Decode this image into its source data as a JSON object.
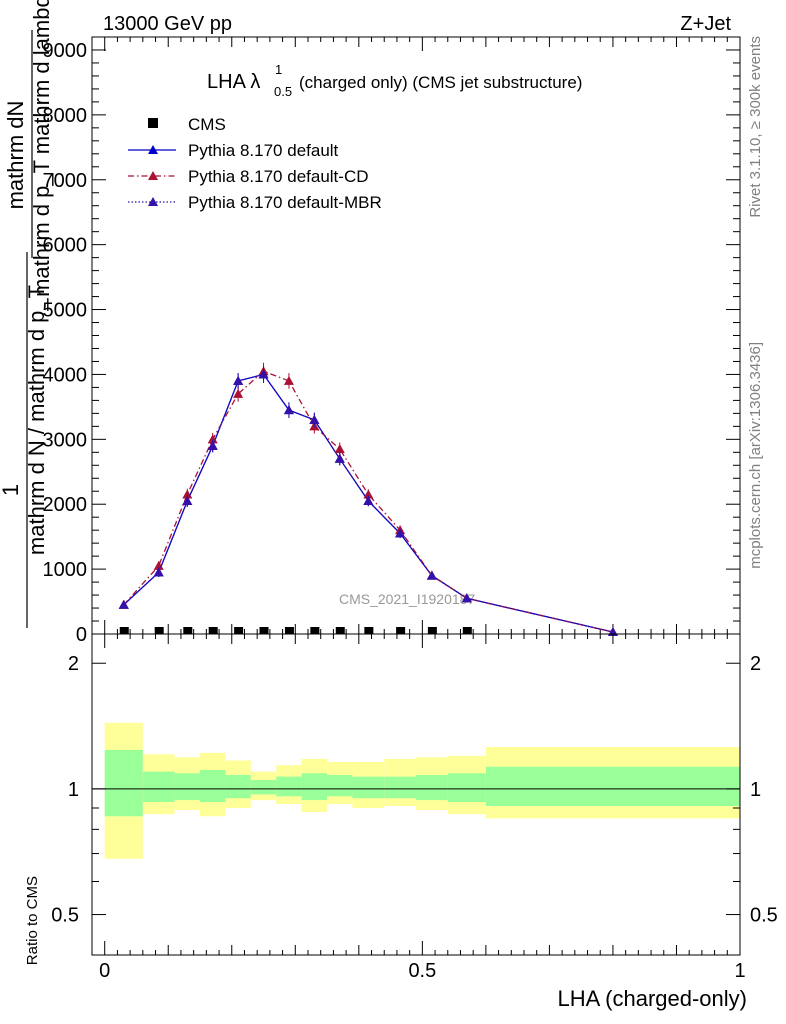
{
  "header": {
    "left": "13000 GeV pp",
    "right": "Z+Jet"
  },
  "side_labels": {
    "rivet": "Rivet 3.1.10, ≥ 300k events",
    "mcplots": "mcplots.cern.ch [arXiv:1306.3436]"
  },
  "main_plot": {
    "title_prefix": "LHA λ",
    "title_sup": "1",
    "title_sub": "0.5",
    "title_suffix": "(charged only) (CMS jet substructure)",
    "watermark": "CMS_2021_I1920187",
    "ylabel_num_top": "mathrm dN",
    "ylabel_den_top": "mathrm d p_T mathrm d lambda",
    "ylabel_num_bottom": "1",
    "ylabel_den_bottom": "mathrm d N / mathrm d p_T",
    "yticks": [
      "0",
      "1000",
      "2000",
      "3000",
      "4000",
      "5000",
      "6000",
      "7000",
      "8000",
      "9000"
    ],
    "ylim": [
      0,
      9200
    ]
  },
  "ratio_plot": {
    "ylabel": "Ratio to CMS",
    "yticks": [
      "0.5",
      "1",
      "2"
    ],
    "ylim": [
      0.4,
      2.35
    ]
  },
  "xaxis": {
    "label": "LHA (charged-only)",
    "ticks": [
      "0",
      "0.5",
      "1"
    ],
    "xlim": [
      -0.02,
      1.0
    ]
  },
  "legend": [
    {
      "label": "CMS",
      "color": "#000000",
      "marker": "square",
      "line": "none"
    },
    {
      "label": "Pythia 8.170 default",
      "color": "#0000cc",
      "marker": "triangle",
      "line": "solid"
    },
    {
      "label": "Pythia 8.170 default-CD",
      "color": "#aa1133",
      "marker": "triangle",
      "line": "dashdot"
    },
    {
      "label": "Pythia 8.170 default-MBR",
      "color": "#3311aa",
      "marker": "triangle",
      "line": "dotted"
    }
  ],
  "chart_data": {
    "type": "line",
    "x": [
      0.03,
      0.085,
      0.13,
      0.17,
      0.21,
      0.25,
      0.29,
      0.33,
      0.37,
      0.415,
      0.465,
      0.515,
      0.57,
      0.8
    ],
    "bin_edges": [
      0.0,
      0.06,
      0.11,
      0.15,
      0.19,
      0.23,
      0.27,
      0.31,
      0.35,
      0.39,
      0.44,
      0.49,
      0.54,
      0.6,
      1.0
    ],
    "series": [
      {
        "name": "CMS",
        "values": [
          0,
          0,
          0,
          0,
          0,
          0,
          0,
          0,
          0,
          0,
          0,
          0,
          0,
          0
        ]
      },
      {
        "name": "Pythia 8.170 default",
        "values": [
          450,
          950,
          2050,
          2900,
          3900,
          4000,
          3450,
          3300,
          2700,
          2050,
          1550,
          900,
          550,
          30
        ],
        "errors": [
          60,
          70,
          90,
          100,
          120,
          130,
          120,
          110,
          100,
          80,
          70,
          60,
          40,
          10
        ]
      },
      {
        "name": "Pythia 8.170 default-CD",
        "values": [
          450,
          1050,
          2150,
          3000,
          3700,
          4050,
          3900,
          3200,
          2850,
          2150,
          1600,
          900,
          550,
          30
        ],
        "errors": [
          60,
          70,
          90,
          100,
          120,
          130,
          120,
          110,
          100,
          80,
          70,
          60,
          40,
          10
        ]
      },
      {
        "name": "Pythia 8.170 default-MBR",
        "values": [
          450,
          950,
          2050,
          2900,
          3900,
          4000,
          3450,
          3300,
          2700,
          2050,
          1550,
          900,
          550,
          30
        ],
        "errors": [
          60,
          70,
          90,
          100,
          120,
          130,
          120,
          110,
          100,
          80,
          70,
          60,
          40,
          10
        ]
      }
    ],
    "ratio_bands": {
      "green_upper": [
        1.24,
        1.1,
        1.09,
        1.11,
        1.08,
        1.05,
        1.07,
        1.09,
        1.08,
        1.07,
        1.07,
        1.08,
        1.09,
        1.13
      ],
      "green_lower": [
        0.86,
        0.93,
        0.94,
        0.93,
        0.95,
        0.97,
        0.96,
        0.94,
        0.96,
        0.95,
        0.95,
        0.94,
        0.93,
        0.91
      ],
      "yellow_upper": [
        1.44,
        1.21,
        1.19,
        1.22,
        1.17,
        1.1,
        1.14,
        1.18,
        1.16,
        1.16,
        1.18,
        1.19,
        1.2,
        1.26
      ],
      "yellow_lower": [
        0.68,
        0.87,
        0.89,
        0.86,
        0.9,
        0.94,
        0.92,
        0.88,
        0.92,
        0.9,
        0.91,
        0.89,
        0.87,
        0.85
      ]
    }
  }
}
